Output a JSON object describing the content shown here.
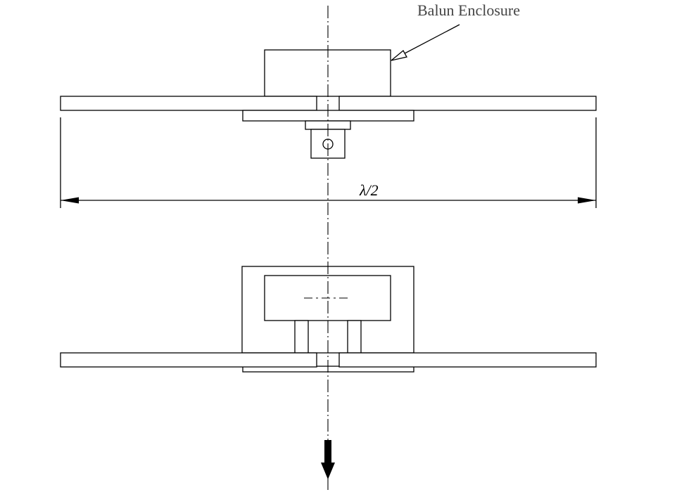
{
  "callout": {
    "label": "Balun Enclosure"
  },
  "dimension": {
    "label": "λ/2"
  },
  "colors": {
    "line": "#000000",
    "callout_text": "#444444",
    "background": "#ffffff"
  },
  "icons": {
    "direction_arrow": "arrow-down-icon"
  }
}
